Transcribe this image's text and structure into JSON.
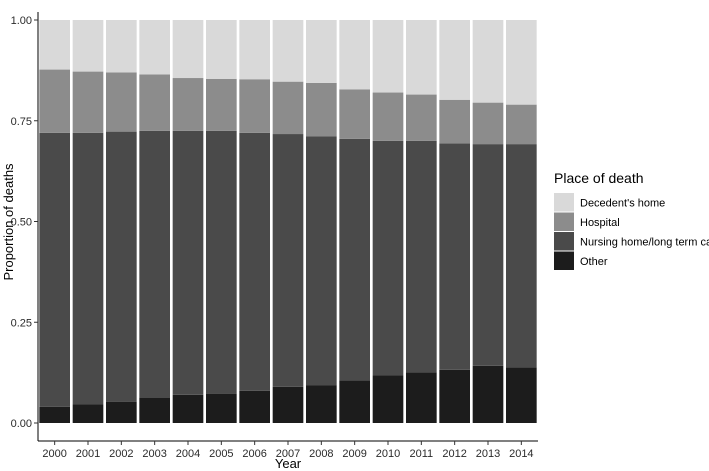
{
  "chart_data": {
    "type": "bar",
    "stacked": true,
    "xlabel": "Year",
    "ylabel": "Proportion of deaths",
    "ylim": [
      0,
      1
    ],
    "yticks": [
      "0.00",
      "0.25",
      "0.50",
      "0.75",
      "1.00"
    ],
    "ytick_values": [
      0,
      0.25,
      0.5,
      0.75,
      1.0
    ],
    "categories": [
      "2000",
      "2001",
      "2002",
      "2003",
      "2004",
      "2005",
      "2006",
      "2007",
      "2008",
      "2009",
      "2010",
      "2011",
      "2012",
      "2013",
      "2014"
    ],
    "legend_title": "Place of death",
    "legend_position": "right",
    "grid": false,
    "series": [
      {
        "name": "Other",
        "color": "#1c1c1c",
        "values": [
          0.04,
          0.046,
          0.053,
          0.063,
          0.07,
          0.072,
          0.08,
          0.09,
          0.094,
          0.106,
          0.118,
          0.126,
          0.132,
          0.142,
          0.138
        ]
      },
      {
        "name": "Nursing home/long term care",
        "color": "#4a4a4a",
        "values": [
          0.68,
          0.674,
          0.67,
          0.662,
          0.655,
          0.653,
          0.64,
          0.627,
          0.617,
          0.599,
          0.582,
          0.574,
          0.562,
          0.55,
          0.554
        ]
      },
      {
        "name": "Hospital",
        "color": "#8c8c8c",
        "values": [
          0.157,
          0.152,
          0.147,
          0.14,
          0.131,
          0.129,
          0.133,
          0.13,
          0.133,
          0.123,
          0.12,
          0.115,
          0.108,
          0.103,
          0.098
        ]
      },
      {
        "name": "Decedent's home",
        "color": "#d9d9d9",
        "values": [
          0.123,
          0.128,
          0.13,
          0.135,
          0.144,
          0.146,
          0.147,
          0.153,
          0.156,
          0.172,
          0.18,
          0.185,
          0.198,
          0.205,
          0.21
        ]
      }
    ],
    "legend_order": [
      "Decedent's home",
      "Hospital",
      "Nursing home/long term care",
      "Other"
    ]
  }
}
